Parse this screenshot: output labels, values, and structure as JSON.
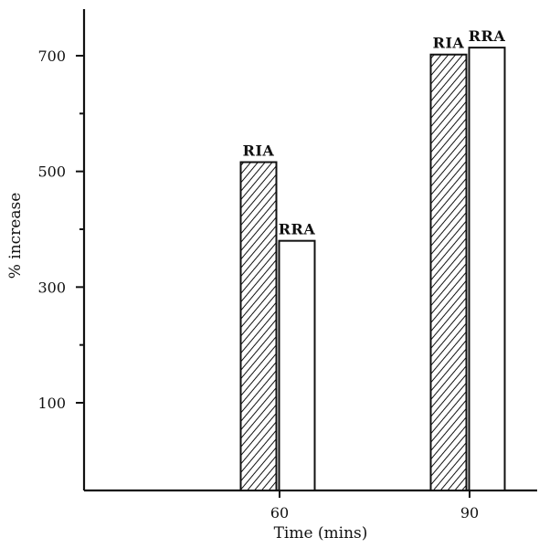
{
  "chart_data": {
    "type": "bar",
    "categories": [
      "60",
      "90"
    ],
    "series": [
      {
        "name": "RIA",
        "values": [
          516,
          702
        ],
        "pattern": "hatched"
      },
      {
        "name": "RRA",
        "values": [
          380,
          714
        ],
        "pattern": "open"
      }
    ],
    "xlabel": "Time (mins)",
    "ylabel": "% increase",
    "ylim": [
      0,
      800
    ],
    "yticks": [
      100,
      300,
      500,
      700
    ],
    "yticks_minor": [
      200,
      400,
      600
    ],
    "grid": false,
    "legend": "none",
    "colors": {
      "ink": "#111111",
      "background": "#ffffff",
      "hatch": "#111111"
    }
  }
}
